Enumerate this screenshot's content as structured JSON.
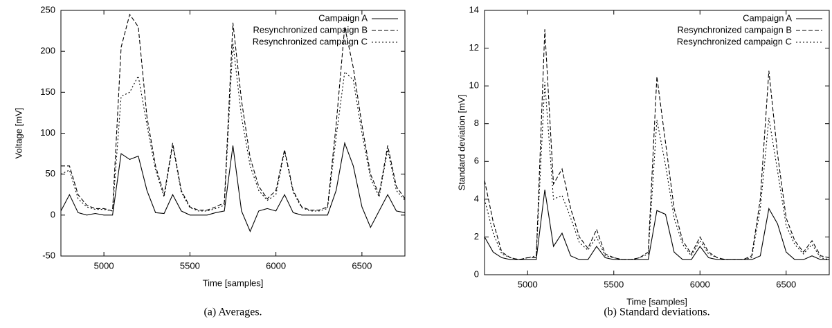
{
  "chart_data": [
    {
      "type": "line",
      "caption": "(a) Averages.",
      "x_label": "Time [samples]",
      "y_label": "Voltage [mV]",
      "x": [
        4750,
        4800,
        4850,
        4900,
        4950,
        5000,
        5050,
        5100,
        5150,
        5200,
        5250,
        5300,
        5350,
        5400,
        5450,
        5500,
        5550,
        5600,
        5650,
        5700,
        5750,
        5800,
        5850,
        5900,
        5950,
        6000,
        6050,
        6100,
        6150,
        6200,
        6250,
        6300,
        6350,
        6400,
        6450,
        6500,
        6550,
        6600,
        6650,
        6700,
        6750
      ],
      "xlim": [
        4750,
        6750
      ],
      "xticks": [
        5000,
        5500,
        6000,
        6500
      ],
      "ylim": [
        -50,
        250
      ],
      "yticks": [
        -50,
        0,
        50,
        100,
        150,
        200,
        250
      ],
      "legend": "upper right",
      "series": [
        {
          "name": "Campaign A",
          "color": "#000000",
          "dash": "solid",
          "values": [
            5,
            25,
            3,
            0,
            2,
            0,
            0,
            75,
            68,
            72,
            30,
            3,
            2,
            25,
            5,
            0,
            0,
            0,
            3,
            5,
            85,
            5,
            -20,
            5,
            8,
            5,
            25,
            3,
            0,
            0,
            0,
            0,
            30,
            88,
            60,
            10,
            -15,
            5,
            25,
            5,
            3
          ]
        },
        {
          "name": "Resynchronized campaign B",
          "color": "#000000",
          "dash": "dashed",
          "values": [
            60,
            60,
            25,
            12,
            8,
            8,
            5,
            205,
            245,
            230,
            120,
            60,
            25,
            88,
            30,
            10,
            6,
            6,
            10,
            15,
            235,
            140,
            70,
            35,
            20,
            30,
            80,
            30,
            10,
            6,
            6,
            10,
            110,
            230,
            180,
            110,
            50,
            25,
            85,
            35,
            20
          ]
        },
        {
          "name": "Resynchronized campaign C",
          "color": "#000000",
          "dash": "dotted",
          "values": [
            50,
            55,
            20,
            10,
            7,
            7,
            5,
            145,
            150,
            170,
            110,
            55,
            22,
            85,
            28,
            9,
            5,
            5,
            8,
            12,
            210,
            120,
            60,
            30,
            18,
            25,
            78,
            28,
            9,
            5,
            5,
            8,
            95,
            175,
            165,
            100,
            45,
            22,
            80,
            30,
            18
          ]
        }
      ]
    },
    {
      "type": "line",
      "caption": "(b) Standard deviations.",
      "x_label": "Time [samples]",
      "y_label": "Standard deviation [mV]",
      "x": [
        4750,
        4800,
        4850,
        4900,
        4950,
        5000,
        5050,
        5100,
        5150,
        5200,
        5250,
        5300,
        5350,
        5400,
        5450,
        5500,
        5550,
        5600,
        5650,
        5700,
        5750,
        5800,
        5850,
        5900,
        5950,
        6000,
        6050,
        6100,
        6150,
        6200,
        6250,
        6300,
        6350,
        6400,
        6450,
        6500,
        6550,
        6600,
        6650,
        6700,
        6750
      ],
      "xlim": [
        4750,
        6750
      ],
      "xticks": [
        5000,
        5500,
        6000,
        6500
      ],
      "ylim": [
        0,
        14
      ],
      "yticks": [
        0,
        2,
        4,
        6,
        8,
        10,
        12,
        14
      ],
      "legend": "upper right",
      "series": [
        {
          "name": "Campaign A",
          "color": "#000000",
          "dash": "solid",
          "values": [
            2,
            1.2,
            0.9,
            0.8,
            0.8,
            0.8,
            0.8,
            4.5,
            1.5,
            2.2,
            1,
            0.8,
            0.8,
            1.5,
            0.9,
            0.8,
            0.8,
            0.8,
            0.8,
            0.8,
            3.4,
            3.2,
            1.2,
            0.8,
            0.8,
            1.5,
            0.9,
            0.8,
            0.8,
            0.8,
            0.8,
            0.8,
            1,
            3.5,
            2.7,
            1.2,
            0.8,
            0.8,
            1,
            0.8,
            0.8
          ]
        },
        {
          "name": "Resynchronized campaign B",
          "color": "#000000",
          "dash": "dashed",
          "values": [
            5,
            2.8,
            1.2,
            0.9,
            0.8,
            0.9,
            0.9,
            13,
            4.8,
            5.6,
            3.5,
            2,
            1.4,
            2.4,
            1.1,
            0.9,
            0.8,
            0.8,
            0.9,
            1.2,
            10.5,
            7,
            3.5,
            1.8,
            1.1,
            2,
            1.2,
            0.9,
            0.8,
            0.8,
            0.8,
            1,
            4,
            10.8,
            6.4,
            3,
            1.8,
            1.2,
            1.8,
            1,
            0.9
          ]
        },
        {
          "name": "Resynchronized campaign C",
          "color": "#000000",
          "dash": "dotted",
          "values": [
            4,
            2.2,
            1.1,
            0.9,
            0.8,
            0.9,
            1,
            10.2,
            4,
            4.2,
            3,
            1.7,
            1.3,
            2,
            1,
            0.9,
            0.8,
            0.8,
            0.9,
            1.1,
            8.2,
            5.8,
            3,
            1.6,
            1,
            1.8,
            1.1,
            0.9,
            0.8,
            0.8,
            0.8,
            0.9,
            3.5,
            8.3,
            5.5,
            2.6,
            1.6,
            1.1,
            1.6,
            0.9,
            0.8
          ]
        }
      ]
    }
  ]
}
